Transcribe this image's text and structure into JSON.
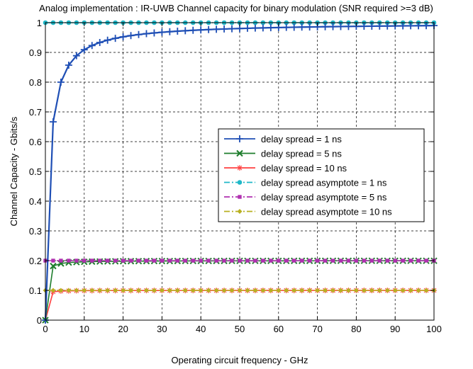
{
  "chart_data": {
    "type": "line",
    "title": "Analog implementation : IR-UWB Channel capacity for binary modulation (SNR required >=3 dB)",
    "xlabel": "Operating circuit frequency - GHz",
    "ylabel": "Channel Capacity - Gbits/s",
    "xlim": [
      0,
      100
    ],
    "ylim": [
      0,
      1
    ],
    "xticks": [
      0,
      10,
      20,
      30,
      40,
      50,
      60,
      70,
      80,
      90,
      100
    ],
    "yticks": [
      0,
      0.1,
      0.2,
      0.3,
      0.4,
      0.5,
      0.6,
      0.7,
      0.8,
      0.9,
      1
    ],
    "xtick_labels": [
      "0",
      "10",
      "20",
      "30",
      "40",
      "50",
      "60",
      "70",
      "80",
      "90",
      "100"
    ],
    "ytick_labels": [
      "0",
      "0.1",
      "0.2",
      "0.3",
      "0.4",
      "0.5",
      "0.6",
      "0.7",
      "0.8",
      "0.9",
      "1"
    ],
    "grid": true,
    "grid_style": "dashed",
    "legend_position": "center-right",
    "x_step": 2,
    "series": [
      {
        "name": "delay spread = 1 ns",
        "color": "#1f4fb5",
        "marker": "plus",
        "line": "solid",
        "tau": 1,
        "kind": "capacity"
      },
      {
        "name": "delay spread = 5 ns",
        "color": "#1e7d2c",
        "marker": "x",
        "line": "solid",
        "tau": 5,
        "kind": "capacity"
      },
      {
        "name": "delay spread = 10 ns",
        "color": "#ff4040",
        "marker": "star",
        "line": "solid",
        "tau": 10,
        "kind": "capacity"
      },
      {
        "name": "delay spread asymptote = 1 ns",
        "color": "#20b8c8",
        "marker": "circle",
        "line": "dashdot",
        "value": 1
      },
      {
        "name": "delay spread asymptote = 5 ns",
        "color": "#b030b0",
        "marker": "square",
        "line": "dashdot",
        "value": 0.2
      },
      {
        "name": "delay spread asymptote = 10 ns",
        "color": "#b8b020",
        "marker": "diamond",
        "line": "dashdot",
        "value": 0.1
      }
    ]
  }
}
